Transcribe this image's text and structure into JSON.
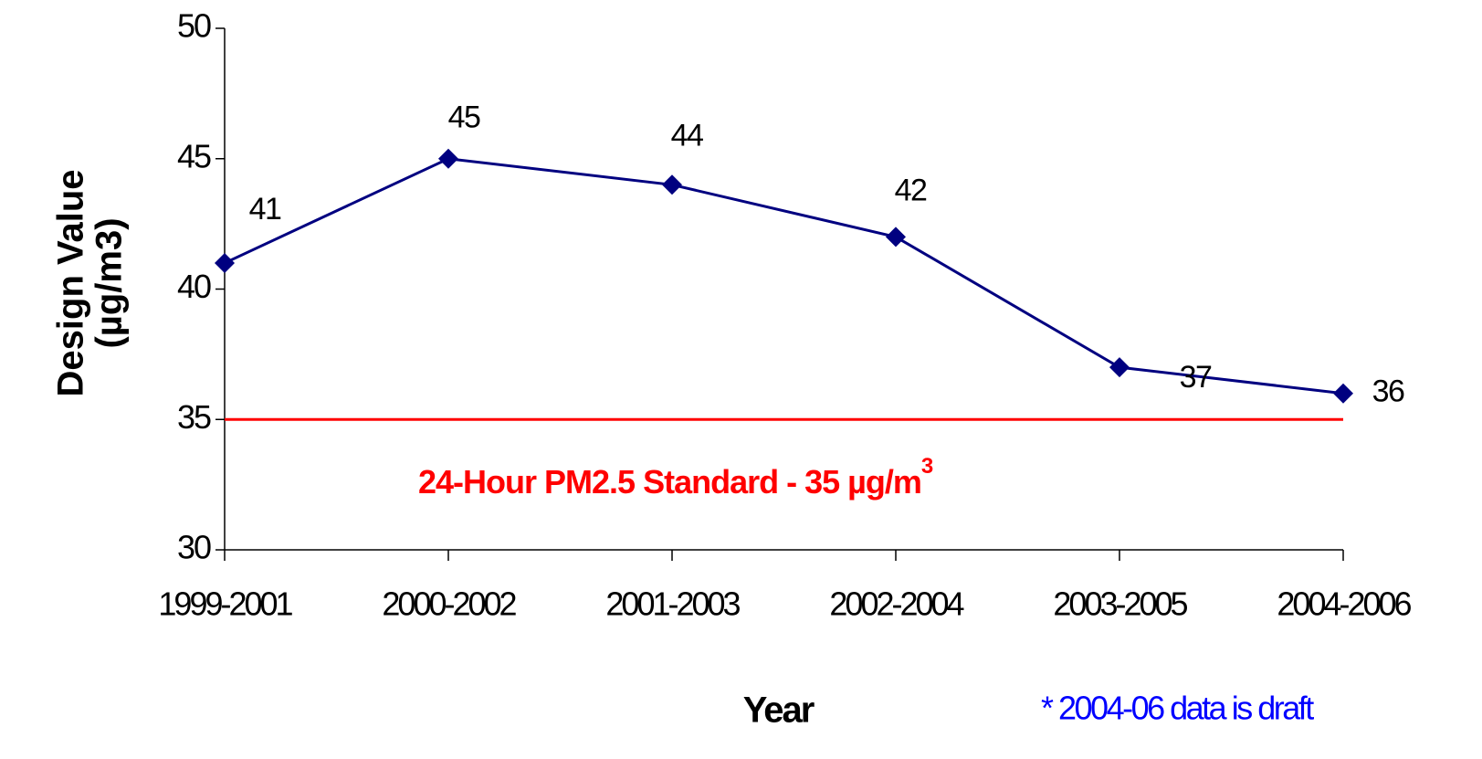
{
  "chart_data": {
    "type": "line",
    "categories": [
      "1999-2001",
      "2000-2002",
      "2001-2003",
      "2002-2004",
      "2003-2005",
      "2004-2006"
    ],
    "series": [
      {
        "name": "Design Value",
        "color": "#000080",
        "values": [
          41,
          45,
          44,
          42,
          37,
          36
        ]
      }
    ],
    "ylim": [
      30,
      50
    ],
    "yticks": [
      30,
      35,
      40,
      45,
      50
    ],
    "y_label": [
      "Design Value",
      "(µg/m3)"
    ],
    "x_label": "Year",
    "standard": {
      "value": 35,
      "color": "#ff0000",
      "label": "24-Hour PM2.5 Standard - 35 µg/m",
      "label_sup": "3"
    },
    "note": "* 2004-06 data is draft",
    "note_color": "#0000ff"
  }
}
